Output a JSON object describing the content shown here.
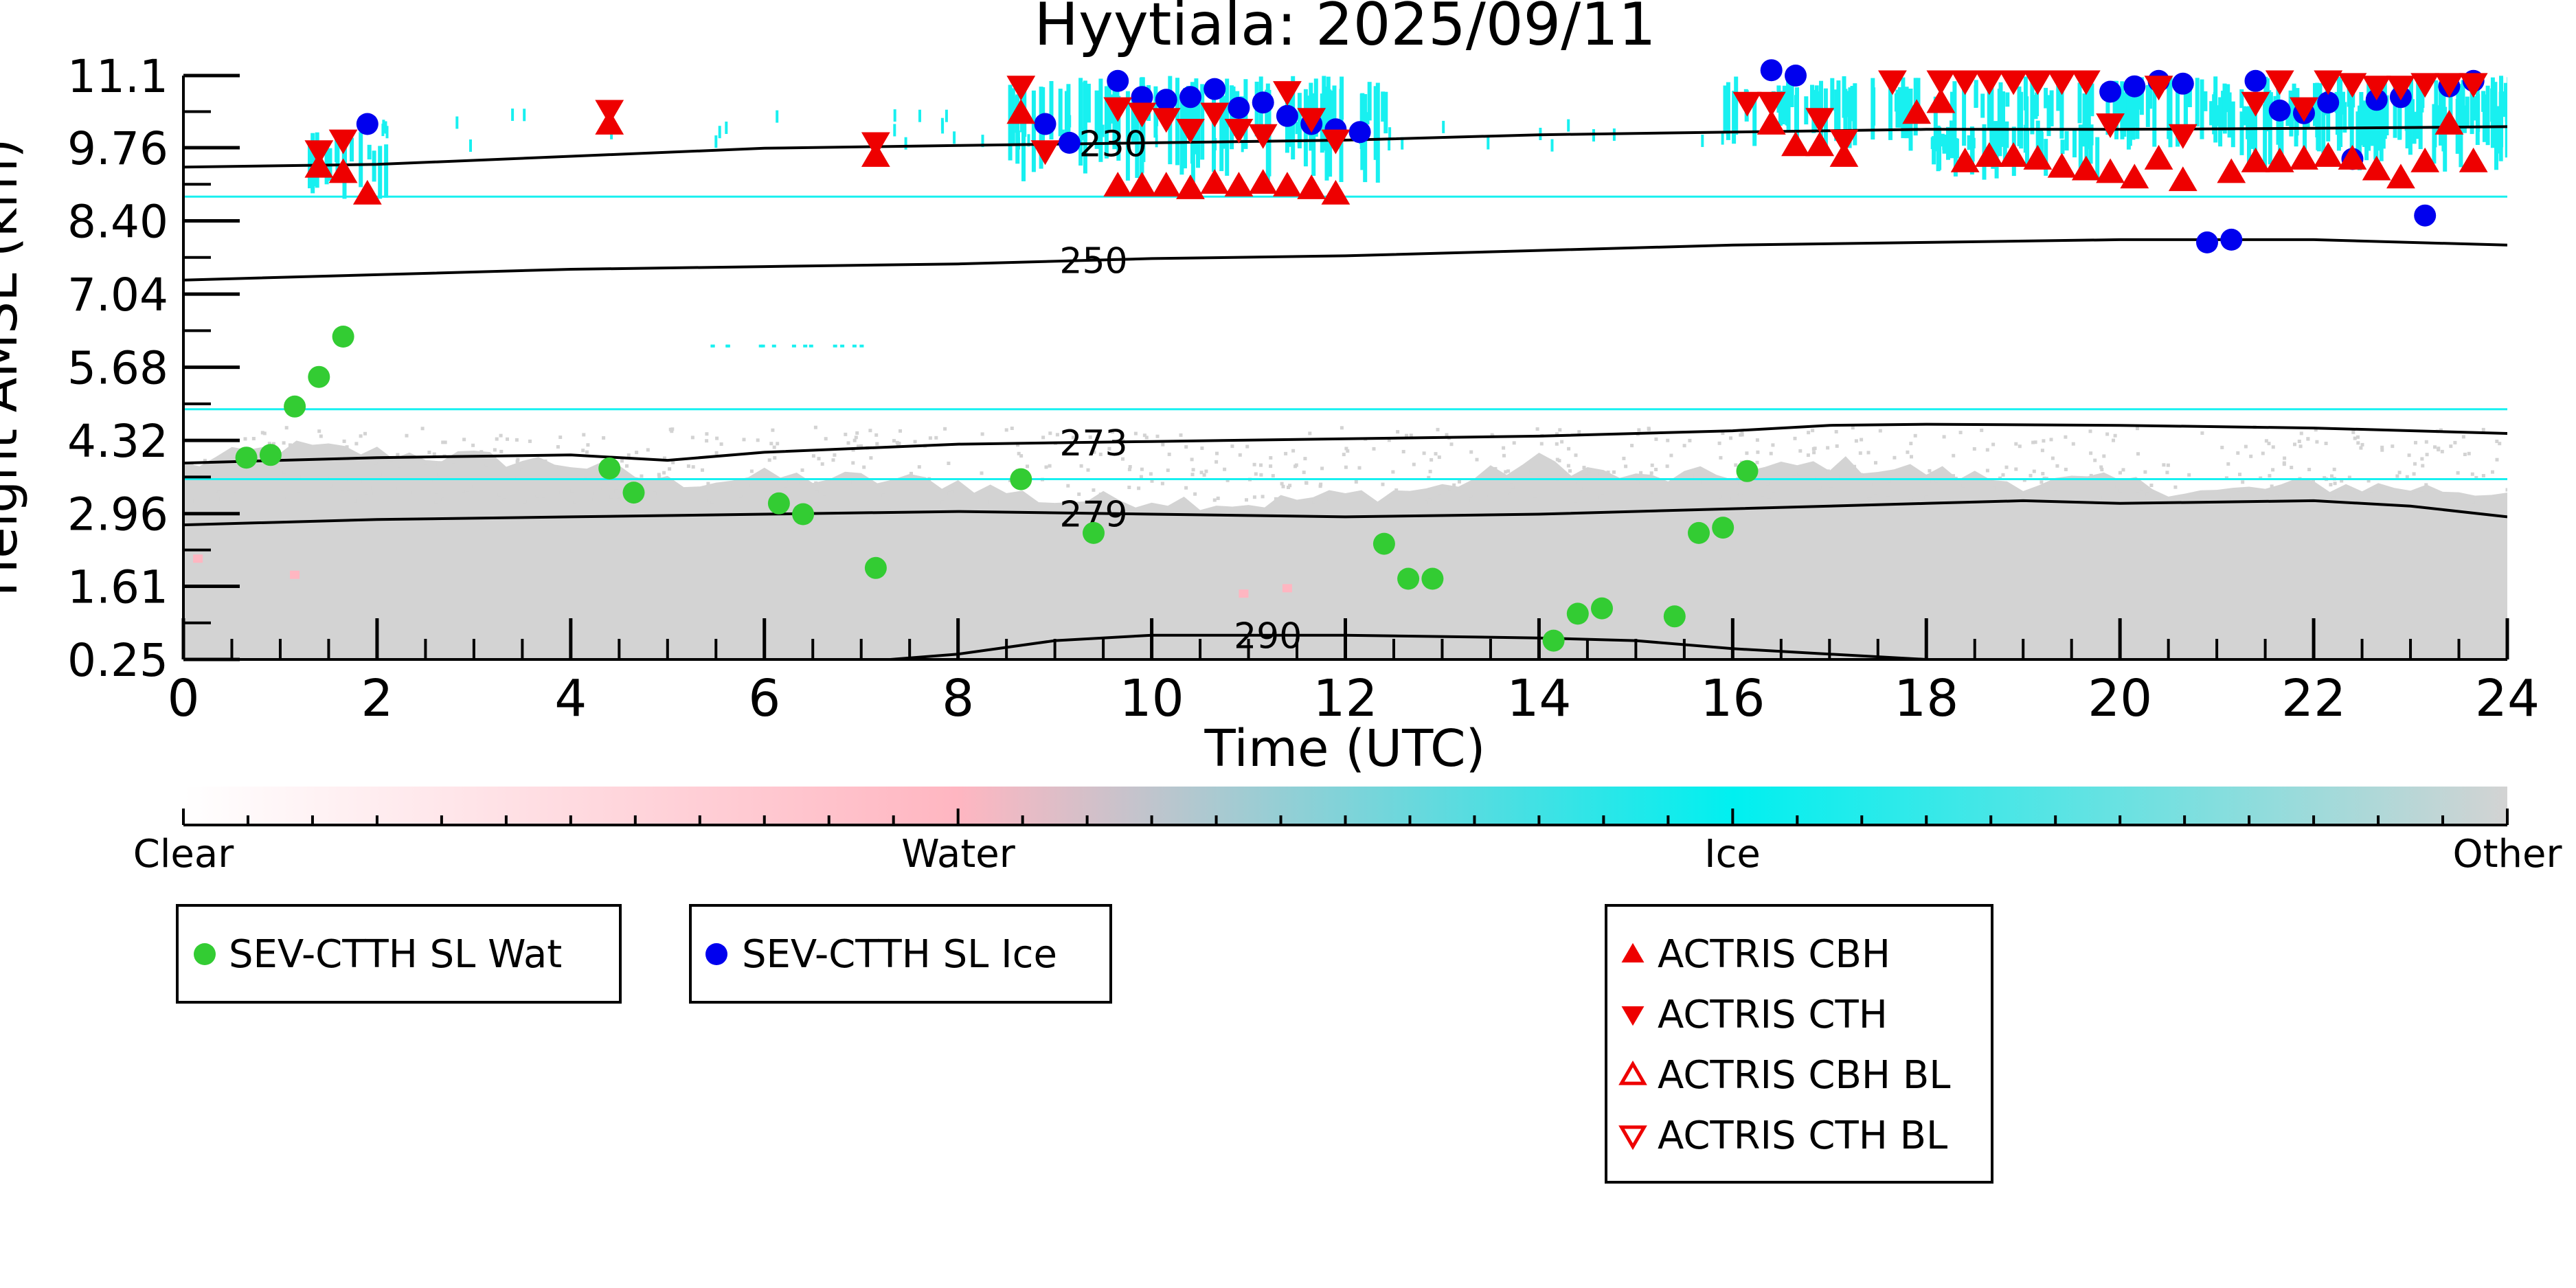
{
  "chart_data": {
    "type": "scatter",
    "title": "Hyytiala: 2025/09/11",
    "xlabel": "Time (UTC)",
    "ylabel": "Height AMSL (km)",
    "xlim": [
      0,
      24
    ],
    "ylim": [
      0.25,
      11.1
    ],
    "x_ticks": [
      0,
      2,
      4,
      6,
      8,
      10,
      12,
      14,
      16,
      18,
      20,
      22,
      24
    ],
    "y_ticks": [
      "0.25",
      "1.61",
      "2.96",
      "4.32",
      "5.68",
      "7.04",
      "8.40",
      "9.76",
      "11.1"
    ],
    "colorbar": {
      "labels": [
        "Clear",
        "Water",
        "Ice",
        "Other"
      ],
      "colors": [
        "#ffffff",
        "#ffb6c1",
        "#00f0f0",
        "#d3d3d3"
      ]
    },
    "colors": {
      "sev_wat": "#33cc33",
      "sev_ice": "#0000ee",
      "actris": "#ee0000",
      "cyan": "#18f0f0",
      "gray": "#d3d3d3",
      "pink": "#ffb6c1"
    },
    "temperature_contours": [
      {
        "label": "230",
        "label_x": 9.6,
        "points": [
          [
            0,
            9.4
          ],
          [
            2,
            9.45
          ],
          [
            4,
            9.6
          ],
          [
            6,
            9.75
          ],
          [
            8,
            9.8
          ],
          [
            10,
            9.85
          ],
          [
            12,
            9.9
          ],
          [
            14,
            10.0
          ],
          [
            16,
            10.05
          ],
          [
            18,
            10.1
          ],
          [
            20,
            10.1
          ],
          [
            22,
            10.12
          ],
          [
            24,
            10.15
          ]
        ]
      },
      {
        "label": "250",
        "label_x": 9.4,
        "points": [
          [
            0,
            7.3
          ],
          [
            2,
            7.4
          ],
          [
            4,
            7.5
          ],
          [
            6,
            7.55
          ],
          [
            8,
            7.6
          ],
          [
            10,
            7.7
          ],
          [
            12,
            7.75
          ],
          [
            14,
            7.85
          ],
          [
            16,
            7.95
          ],
          [
            18,
            8.0
          ],
          [
            20,
            8.05
          ],
          [
            22,
            8.05
          ],
          [
            24,
            7.95
          ]
        ]
      },
      {
        "label": "273",
        "label_x": 9.4,
        "points": [
          [
            0,
            3.9
          ],
          [
            2,
            4.0
          ],
          [
            4,
            4.05
          ],
          [
            5,
            3.95
          ],
          [
            6,
            4.1
          ],
          [
            8,
            4.25
          ],
          [
            10,
            4.3
          ],
          [
            12,
            4.35
          ],
          [
            14,
            4.4
          ],
          [
            16,
            4.5
          ],
          [
            17,
            4.6
          ],
          [
            18,
            4.62
          ],
          [
            20,
            4.6
          ],
          [
            22,
            4.55
          ],
          [
            24,
            4.45
          ]
        ]
      },
      {
        "label": "279",
        "label_x": 9.4,
        "points": [
          [
            0,
            2.75
          ],
          [
            2,
            2.85
          ],
          [
            4,
            2.9
          ],
          [
            6,
            2.95
          ],
          [
            8,
            3.0
          ],
          [
            10,
            2.95
          ],
          [
            12,
            2.9
          ],
          [
            14,
            2.95
          ],
          [
            16,
            3.05
          ],
          [
            18,
            3.15
          ],
          [
            19,
            3.2
          ],
          [
            20,
            3.15
          ],
          [
            22,
            3.2
          ],
          [
            23,
            3.1
          ],
          [
            24,
            2.9
          ]
        ]
      },
      {
        "label": "290",
        "label_x": 11.2,
        "points": [
          [
            7.3,
            0.25
          ],
          [
            8,
            0.35
          ],
          [
            9,
            0.6
          ],
          [
            10,
            0.7
          ],
          [
            12,
            0.7
          ],
          [
            14,
            0.65
          ],
          [
            15,
            0.6
          ],
          [
            16,
            0.45
          ],
          [
            17,
            0.35
          ],
          [
            18,
            0.25
          ]
        ]
      }
    ],
    "horizontal_cyan_lines": [
      8.85,
      4.9,
      3.6
    ],
    "series": [
      {
        "name": "SEV-CTTH SL Wat",
        "marker": "circle",
        "points": [
          [
            0.65,
            4.0
          ],
          [
            0.9,
            4.05
          ],
          [
            1.15,
            4.95
          ],
          [
            1.4,
            5.5
          ],
          [
            1.65,
            6.25
          ],
          [
            4.4,
            3.8
          ],
          [
            4.65,
            3.35
          ],
          [
            6.15,
            3.15
          ],
          [
            6.4,
            2.95
          ],
          [
            7.15,
            1.95
          ],
          [
            8.65,
            3.6
          ],
          [
            9.4,
            2.6
          ],
          [
            12.4,
            2.4
          ],
          [
            12.65,
            1.75
          ],
          [
            12.9,
            1.75
          ],
          [
            14.15,
            0.6
          ],
          [
            14.4,
            1.1
          ],
          [
            14.65,
            1.2
          ],
          [
            15.4,
            1.05
          ],
          [
            15.65,
            2.6
          ],
          [
            15.9,
            2.7
          ],
          [
            16.15,
            3.75
          ]
        ]
      },
      {
        "name": "SEV-CTTH SL Ice",
        "marker": "circle",
        "points": [
          [
            1.9,
            10.2
          ],
          [
            8.9,
            10.2
          ],
          [
            9.15,
            9.85
          ],
          [
            9.65,
            11.0
          ],
          [
            9.9,
            10.7
          ],
          [
            10.15,
            10.65
          ],
          [
            10.4,
            10.7
          ],
          [
            10.65,
            10.85
          ],
          [
            10.9,
            10.5
          ],
          [
            11.15,
            10.6
          ],
          [
            11.4,
            10.35
          ],
          [
            11.65,
            10.2
          ],
          [
            11.9,
            10.1
          ],
          [
            12.15,
            10.05
          ],
          [
            16.4,
            11.2
          ],
          [
            16.65,
            11.1
          ],
          [
            19.9,
            10.8
          ],
          [
            20.15,
            10.9
          ],
          [
            20.4,
            11.0
          ],
          [
            20.65,
            10.95
          ],
          [
            20.9,
            8.0
          ],
          [
            21.15,
            8.05
          ],
          [
            21.4,
            11.0
          ],
          [
            21.65,
            10.45
          ],
          [
            21.9,
            10.4
          ],
          [
            22.15,
            10.6
          ],
          [
            22.4,
            9.55
          ],
          [
            22.65,
            10.65
          ],
          [
            22.9,
            10.7
          ],
          [
            23.15,
            8.5
          ],
          [
            23.4,
            10.9
          ],
          [
            23.65,
            11.0
          ]
        ]
      },
      {
        "name": "ACTRIS CBH",
        "marker": "triangle-up",
        "points": [
          [
            1.4,
            9.4
          ],
          [
            1.65,
            9.3
          ],
          [
            1.9,
            8.9
          ],
          [
            4.4,
            10.2
          ],
          [
            7.15,
            9.6
          ],
          [
            8.65,
            10.4
          ],
          [
            9.65,
            9.05
          ],
          [
            9.9,
            9.05
          ],
          [
            10.15,
            9.05
          ],
          [
            10.4,
            9.0
          ],
          [
            10.65,
            9.1
          ],
          [
            10.9,
            9.05
          ],
          [
            11.15,
            9.1
          ],
          [
            11.4,
            9.05
          ],
          [
            11.65,
            9.0
          ],
          [
            11.9,
            8.9
          ],
          [
            16.4,
            10.2
          ],
          [
            16.65,
            9.8
          ],
          [
            16.9,
            9.8
          ],
          [
            17.15,
            9.6
          ],
          [
            17.9,
            10.4
          ],
          [
            18.15,
            10.6
          ],
          [
            18.4,
            9.5
          ],
          [
            18.65,
            9.6
          ],
          [
            18.9,
            9.6
          ],
          [
            19.15,
            9.55
          ],
          [
            19.4,
            9.4
          ],
          [
            19.65,
            9.35
          ],
          [
            19.9,
            9.3
          ],
          [
            20.15,
            9.2
          ],
          [
            20.4,
            9.55
          ],
          [
            20.65,
            9.15
          ],
          [
            21.15,
            9.3
          ],
          [
            21.4,
            9.5
          ],
          [
            21.65,
            9.5
          ],
          [
            21.9,
            9.55
          ],
          [
            22.15,
            9.6
          ],
          [
            22.4,
            9.55
          ],
          [
            22.65,
            9.35
          ],
          [
            22.9,
            9.2
          ],
          [
            23.15,
            9.5
          ],
          [
            23.4,
            10.2
          ],
          [
            23.65,
            9.5
          ]
        ]
      },
      {
        "name": "ACTRIS CTH",
        "marker": "triangle-down",
        "points": [
          [
            1.4,
            9.7
          ],
          [
            1.65,
            9.9
          ],
          [
            4.4,
            10.45
          ],
          [
            7.15,
            9.85
          ],
          [
            8.65,
            10.9
          ],
          [
            8.9,
            9.7
          ],
          [
            9.65,
            10.5
          ],
          [
            9.9,
            10.4
          ],
          [
            10.15,
            10.3
          ],
          [
            10.4,
            10.1
          ],
          [
            10.65,
            10.4
          ],
          [
            10.9,
            10.1
          ],
          [
            11.15,
            10.0
          ],
          [
            11.4,
            10.8
          ],
          [
            11.65,
            10.3
          ],
          [
            11.9,
            9.9
          ],
          [
            16.15,
            10.6
          ],
          [
            16.4,
            10.6
          ],
          [
            16.9,
            10.3
          ],
          [
            17.15,
            9.9
          ],
          [
            17.65,
            11.0
          ],
          [
            18.15,
            11.0
          ],
          [
            18.4,
            11.0
          ],
          [
            18.65,
            11.0
          ],
          [
            18.9,
            11.0
          ],
          [
            19.15,
            11.0
          ],
          [
            19.4,
            11.0
          ],
          [
            19.65,
            11.0
          ],
          [
            19.9,
            10.2
          ],
          [
            20.4,
            10.9
          ],
          [
            20.65,
            10.0
          ],
          [
            21.4,
            10.6
          ],
          [
            21.65,
            11.0
          ],
          [
            21.9,
            10.5
          ],
          [
            22.15,
            11.0
          ],
          [
            22.4,
            10.95
          ],
          [
            22.65,
            10.9
          ],
          [
            22.9,
            10.9
          ],
          [
            23.15,
            10.95
          ],
          [
            23.4,
            10.95
          ],
          [
            23.65,
            10.95
          ]
        ]
      },
      {
        "name": "ACTRIS CBH BL",
        "marker": "triangle-up-open",
        "points": []
      },
      {
        "name": "ACTRIS CTH BL",
        "marker": "triangle-down-open",
        "points": []
      }
    ],
    "cyan_regions": [
      {
        "x": [
          1.25,
          2.1
        ],
        "y": [
          8.8,
          10.1
        ]
      },
      {
        "x": [
          8.5,
          12.5
        ],
        "y": [
          9.1,
          11.1
        ]
      },
      {
        "x": [
          15.9,
          24.0
        ],
        "y": [
          9.7,
          11.1
        ]
      },
      {
        "x": [
          18.0,
          19.8
        ],
        "y": [
          9.1,
          10.3
        ]
      },
      {
        "x": [
          20.9,
          24.0
        ],
        "y": [
          9.3,
          10.8
        ]
      }
    ],
    "legends": [
      {
        "entries": [
          "SEV-CTTH SL Wat"
        ]
      },
      {
        "entries": [
          "SEV-CTTH SL Ice"
        ]
      },
      {
        "entries": [
          "ACTRIS CBH",
          "ACTRIS CTH",
          "ACTRIS CBH BL",
          "ACTRIS CTH BL"
        ]
      }
    ]
  }
}
